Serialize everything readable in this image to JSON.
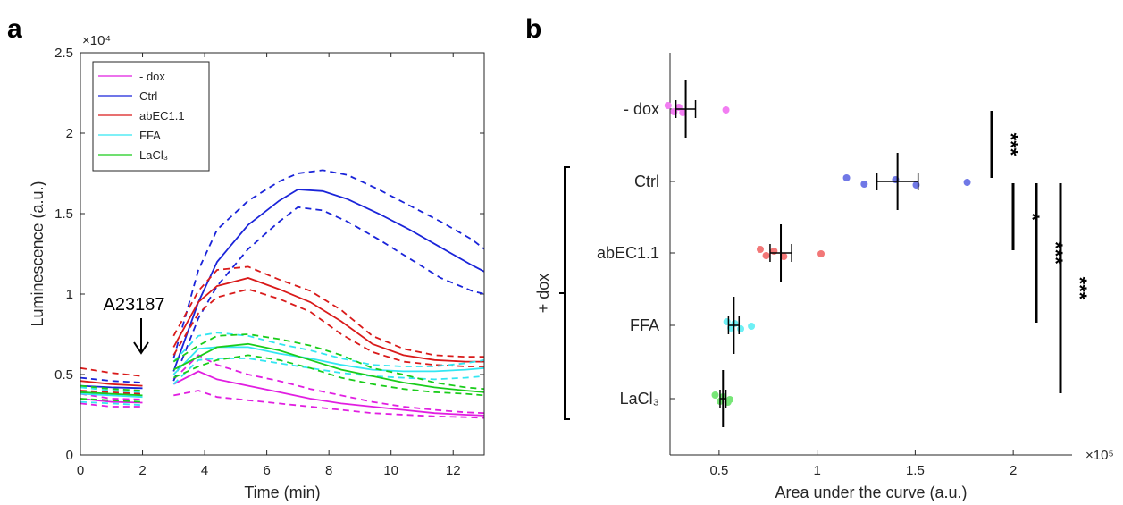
{
  "panel_a": {
    "label": "a",
    "exponent_label": "×10⁴",
    "annotation": "A23187",
    "chart_data": {
      "type": "line",
      "xlabel": "Time (min)",
      "ylabel": "Luminescence (a.u.)",
      "xlim": [
        0,
        13
      ],
      "ylim": [
        0,
        25000
      ],
      "xticks": [
        0,
        2,
        4,
        6,
        8,
        10,
        12
      ],
      "yticks": [
        0,
        5000,
        10000,
        15000,
        20000,
        25000
      ],
      "ytick_labels": [
        "0",
        "0.5",
        "1",
        "1.5",
        "2",
        "2.5"
      ],
      "legend_position": "top-left",
      "gap_between_minutes": [
        2,
        3
      ],
      "series": [
        {
          "name": "- dox",
          "color": "#e11ee1",
          "x": [
            0,
            1,
            2,
            3,
            3.8,
            4.4,
            5.4,
            6.4,
            7.4,
            8.4,
            9.4,
            10.4,
            11.4,
            12.4,
            13
          ],
          "mean": [
            3500,
            3300,
            3250,
            4400,
            5200,
            4700,
            4300,
            3900,
            3500,
            3200,
            3000,
            2800,
            2600,
            2500,
            2450
          ],
          "upper": [
            3800,
            3500,
            3450,
            4700,
            6200,
            5600,
            5000,
            4600,
            4100,
            3700,
            3300,
            3000,
            2800,
            2650,
            2600
          ],
          "lower": [
            3200,
            3000,
            3000,
            3700,
            4000,
            3600,
            3400,
            3200,
            3000,
            2800,
            2600,
            2500,
            2400,
            2350,
            2300
          ]
        },
        {
          "name": "Ctrl",
          "color": "#1a24d9",
          "x": [
            0,
            1,
            2,
            3,
            3.8,
            4.4,
            5.4,
            6.4,
            7,
            7.8,
            8.6,
            9.6,
            10.6,
            11.6,
            12.6,
            13
          ],
          "mean": [
            4300,
            4200,
            4150,
            5200,
            9500,
            12000,
            14300,
            15800,
            16500,
            16400,
            15900,
            15000,
            14000,
            12900,
            11800,
            11400
          ],
          "upper": [
            4800,
            4600,
            4500,
            6000,
            11500,
            14000,
            15800,
            17000,
            17500,
            17700,
            17400,
            16500,
            15500,
            14500,
            13400,
            12800
          ],
          "lower": [
            3900,
            3800,
            3750,
            4600,
            8500,
            10500,
            12800,
            14500,
            15400,
            15200,
            14500,
            13400,
            12200,
            11000,
            10200,
            10000
          ]
        },
        {
          "name": "abEC1.1",
          "color": "#d91a1a",
          "x": [
            0,
            1,
            2,
            3,
            3.8,
            4.4,
            5.4,
            6.4,
            7.4,
            8.4,
            9.4,
            10.4,
            11.4,
            12.4,
            13
          ],
          "mean": [
            4600,
            4400,
            4300,
            6700,
            9500,
            10500,
            11000,
            10300,
            9500,
            8300,
            6900,
            6200,
            5900,
            5800,
            5800
          ],
          "upper": [
            5400,
            5100,
            4900,
            7400,
            10200,
            11500,
            11700,
            10900,
            10200,
            9000,
            7400,
            6600,
            6200,
            6100,
            6100
          ],
          "lower": [
            4000,
            3900,
            3800,
            6200,
            8800,
            9800,
            10300,
            9700,
            8900,
            7500,
            6400,
            5800,
            5600,
            5500,
            5500
          ]
        },
        {
          "name": "FFA",
          "color": "#33e6f2",
          "x": [
            0,
            1,
            2,
            3,
            3.8,
            4.4,
            5.4,
            6.4,
            7.4,
            8.4,
            9.4,
            10.4,
            11.4,
            12.4,
            13
          ],
          "mean": [
            3800,
            3700,
            3600,
            5000,
            6600,
            6700,
            6700,
            6300,
            6000,
            5600,
            5300,
            5200,
            5200,
            5300,
            5400
          ],
          "upper": [
            4200,
            4000,
            3900,
            5800,
            7400,
            7600,
            7400,
            6900,
            6500,
            6000,
            5600,
            5500,
            5500,
            5700,
            5900
          ],
          "lower": [
            3300,
            3200,
            3100,
            4400,
            5900,
            6000,
            6000,
            5700,
            5400,
            5100,
            4900,
            4800,
            4700,
            4800,
            4900
          ]
        },
        {
          "name": "LaCl₃",
          "color": "#1acc1a",
          "x": [
            0,
            1,
            2,
            3,
            3.8,
            4.4,
            5.4,
            6.4,
            7.4,
            8.4,
            9.4,
            10.4,
            11.4,
            12.4,
            13
          ],
          "mean": [
            3900,
            3800,
            3700,
            5300,
            6100,
            6700,
            6900,
            6500,
            5900,
            5300,
            4900,
            4500,
            4200,
            4000,
            3900
          ],
          "upper": [
            4300,
            4100,
            4000,
            5800,
            6800,
            7400,
            7500,
            7200,
            6800,
            6200,
            5400,
            5000,
            4500,
            4200,
            4100
          ],
          "lower": [
            3500,
            3400,
            3300,
            4800,
            5500,
            5900,
            6200,
            5900,
            5400,
            4800,
            4400,
            4100,
            3900,
            3800,
            3700
          ]
        }
      ]
    }
  },
  "panel_b": {
    "label": "b",
    "exponent_label": "×10⁵",
    "group_label": "+ dox",
    "chart_data": {
      "type": "scatter",
      "xlabel": "Area under the curve (a.u.)",
      "ylabel": "",
      "xlim": [
        25000,
        230000
      ],
      "xticks": [
        50000,
        100000,
        150000,
        200000
      ],
      "xtick_labels": [
        "0.5",
        "1",
        "1.5",
        "2"
      ],
      "categories": [
        "- dox",
        "Ctrl",
        "abEC1.1",
        "FFA",
        "LaCl₃"
      ],
      "series": [
        {
          "name": "- dox",
          "color": "#f27ef2",
          "points": [
            24000,
            27000,
            29500,
            31500,
            53500
          ],
          "mean": 33000,
          "sem": 5000
        },
        {
          "name": "Ctrl",
          "color": "#7078e6",
          "points": [
            115000,
            124000,
            140000,
            150500,
            176500
          ],
          "mean": 141000,
          "sem": 10500
        },
        {
          "name": "abEC1.1",
          "color": "#f27777",
          "points": [
            71000,
            74000,
            78000,
            83000,
            102000
          ],
          "mean": 81500,
          "sem": 5500
        },
        {
          "name": "FFA",
          "color": "#6ef0f5",
          "points": [
            54000,
            56000,
            58000,
            61000,
            66500
          ],
          "mean": 57500,
          "sem": 2700
        },
        {
          "name": "LaCl₃",
          "color": "#77e677",
          "points": [
            48000,
            50500,
            52000,
            54500,
            55500
          ],
          "mean": 52000,
          "sem": 1500
        }
      ],
      "significance": [
        {
          "from": "- dox",
          "to": "Ctrl",
          "label": "***"
        },
        {
          "from": "Ctrl",
          "to": "abEC1.1",
          "label": "*"
        },
        {
          "from": "Ctrl",
          "to": "FFA",
          "label": "***"
        },
        {
          "from": "Ctrl",
          "to": "LaCl₃",
          "label": "***"
        }
      ]
    }
  }
}
